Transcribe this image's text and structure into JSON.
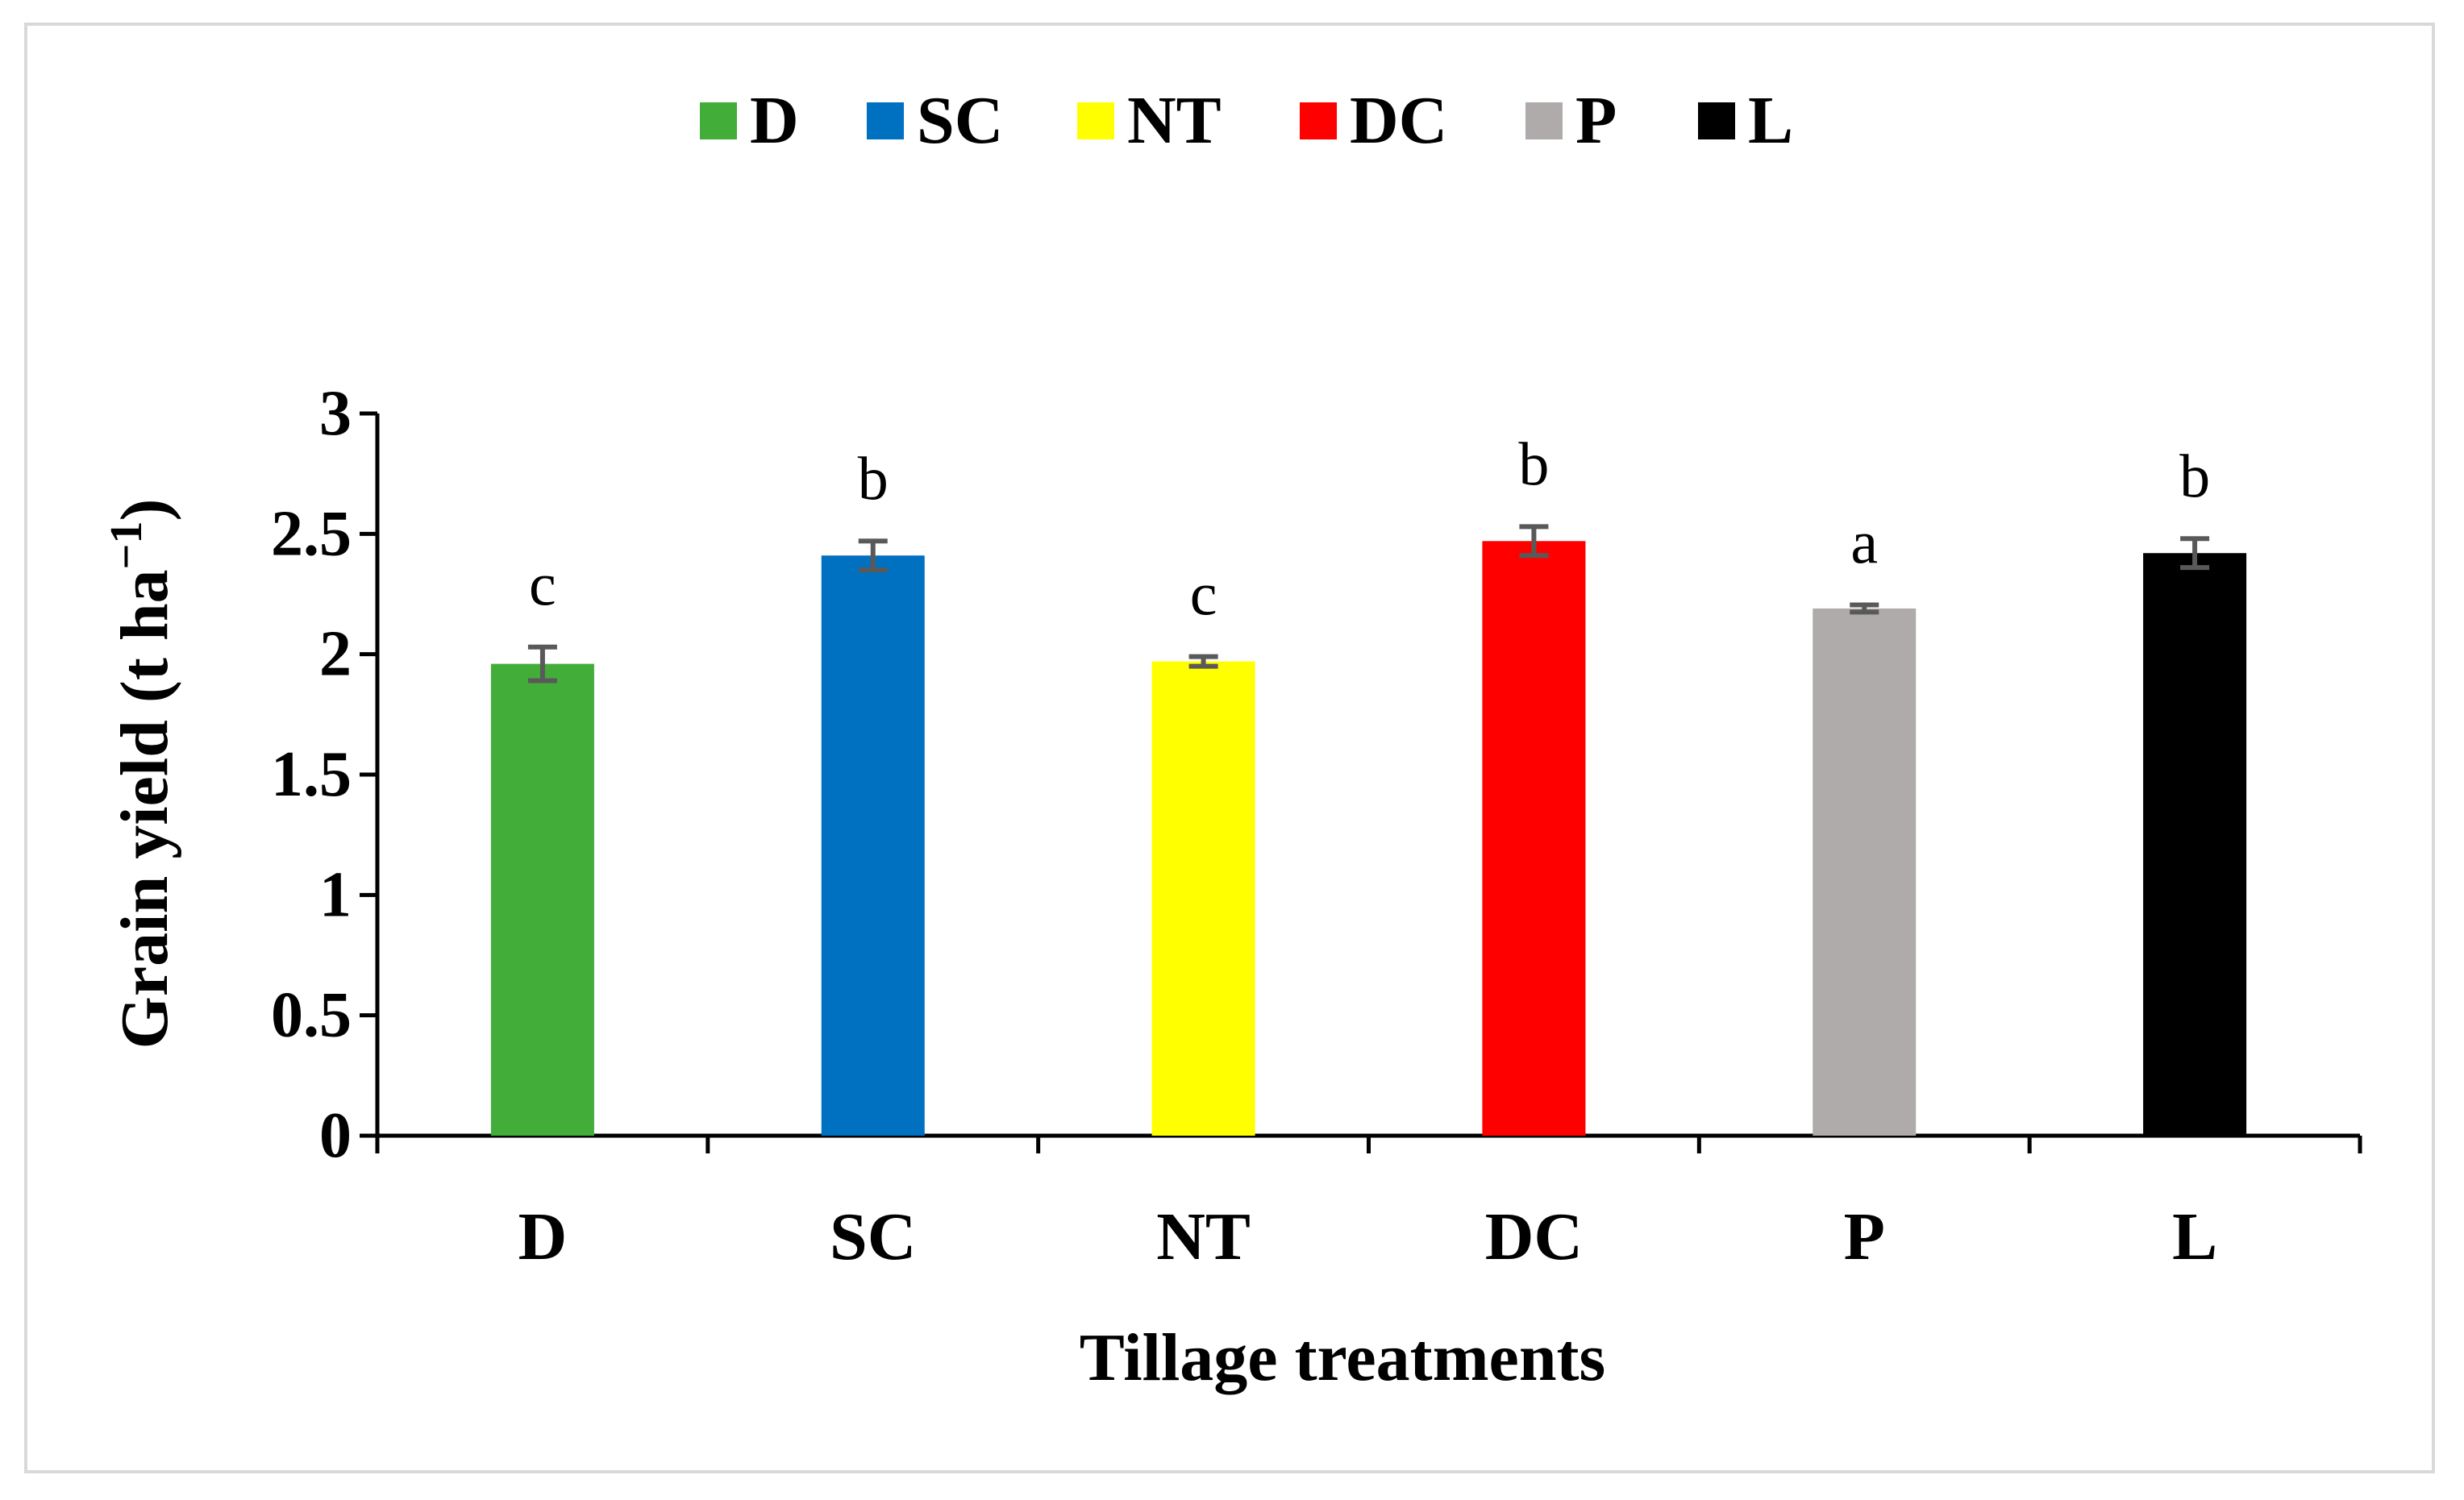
{
  "chart_data": {
    "type": "bar",
    "title": "",
    "xlabel": "Tillage treatments",
    "ylabel": "Grain yield (t ha",
    "ylabel_superscript": "−1",
    "ylabel_close": ")",
    "ylim": [
      0,
      3
    ],
    "yticks": [
      0,
      0.5,
      1,
      1.5,
      2,
      2.5,
      3
    ],
    "ytick_labels": [
      "0",
      "0.5",
      "1",
      "1.5",
      "2",
      "2.5",
      "3"
    ],
    "categories": [
      "D",
      "SC",
      "NT",
      "DC",
      "P",
      "L"
    ],
    "values": [
      1.96,
      2.41,
      1.97,
      2.47,
      2.19,
      2.42
    ],
    "errors": [
      0.07,
      0.06,
      0.02,
      0.06,
      0.015,
      0.06
    ],
    "significance_letters": [
      "c",
      "b",
      "c",
      "b",
      "a",
      "b"
    ],
    "colors": [
      "#43ad3a",
      "#0070c0",
      "#ffff00",
      "#ff0000",
      "#afabab",
      "#000000"
    ],
    "error_bar_color": "#595959",
    "legend": {
      "position": "top-center",
      "entries": [
        "D",
        "SC",
        "NT",
        "DC",
        "P",
        "L"
      ]
    },
    "grid": false
  }
}
